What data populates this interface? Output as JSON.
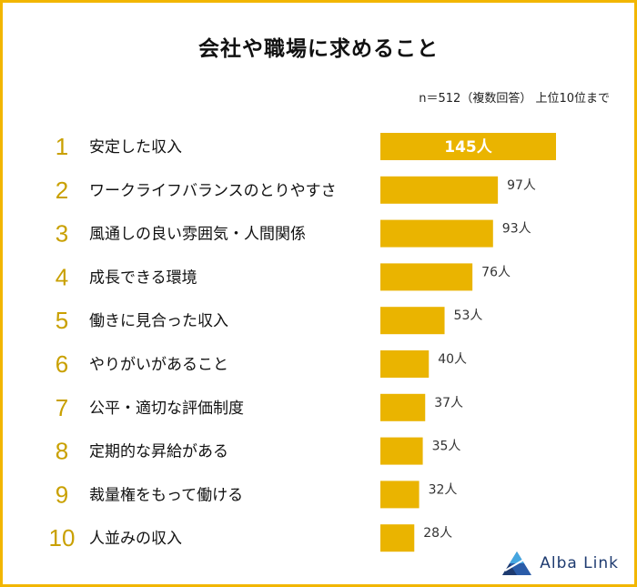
{
  "chart_data": {
    "type": "bar",
    "orientation": "horizontal",
    "title": "会社や職場に求めること",
    "note": "n＝512（複数回答） 上位10位まで",
    "color": "#EAB400",
    "rank_color": "#C9A000",
    "value_suffix": "人",
    "categories": [
      "安定した収入",
      "ワークライフバランスのとりやすさ",
      "風通しの良い雰囲気・人間関係",
      "成長できる環境",
      "働きに見合った収入",
      "やりがいがあること",
      "公平・適切な評価制度",
      "定期的な昇給がある",
      "裁量権をもって働ける",
      "人並みの収入"
    ],
    "ranks": [
      "1",
      "2",
      "3",
      "4",
      "5",
      "6",
      "7",
      "8",
      "9",
      "10"
    ],
    "values": [
      145,
      97,
      93,
      76,
      53,
      40,
      37,
      35,
      32,
      28
    ],
    "value_labels": [
      "145人",
      "97人",
      "93人",
      "76人",
      "53人",
      "40人",
      "37人",
      "35人",
      "32人",
      "28人"
    ]
  },
  "logo": {
    "text": "Alba Link",
    "icon": "alba-link-triangle-icon",
    "color": "#1E3B70"
  }
}
